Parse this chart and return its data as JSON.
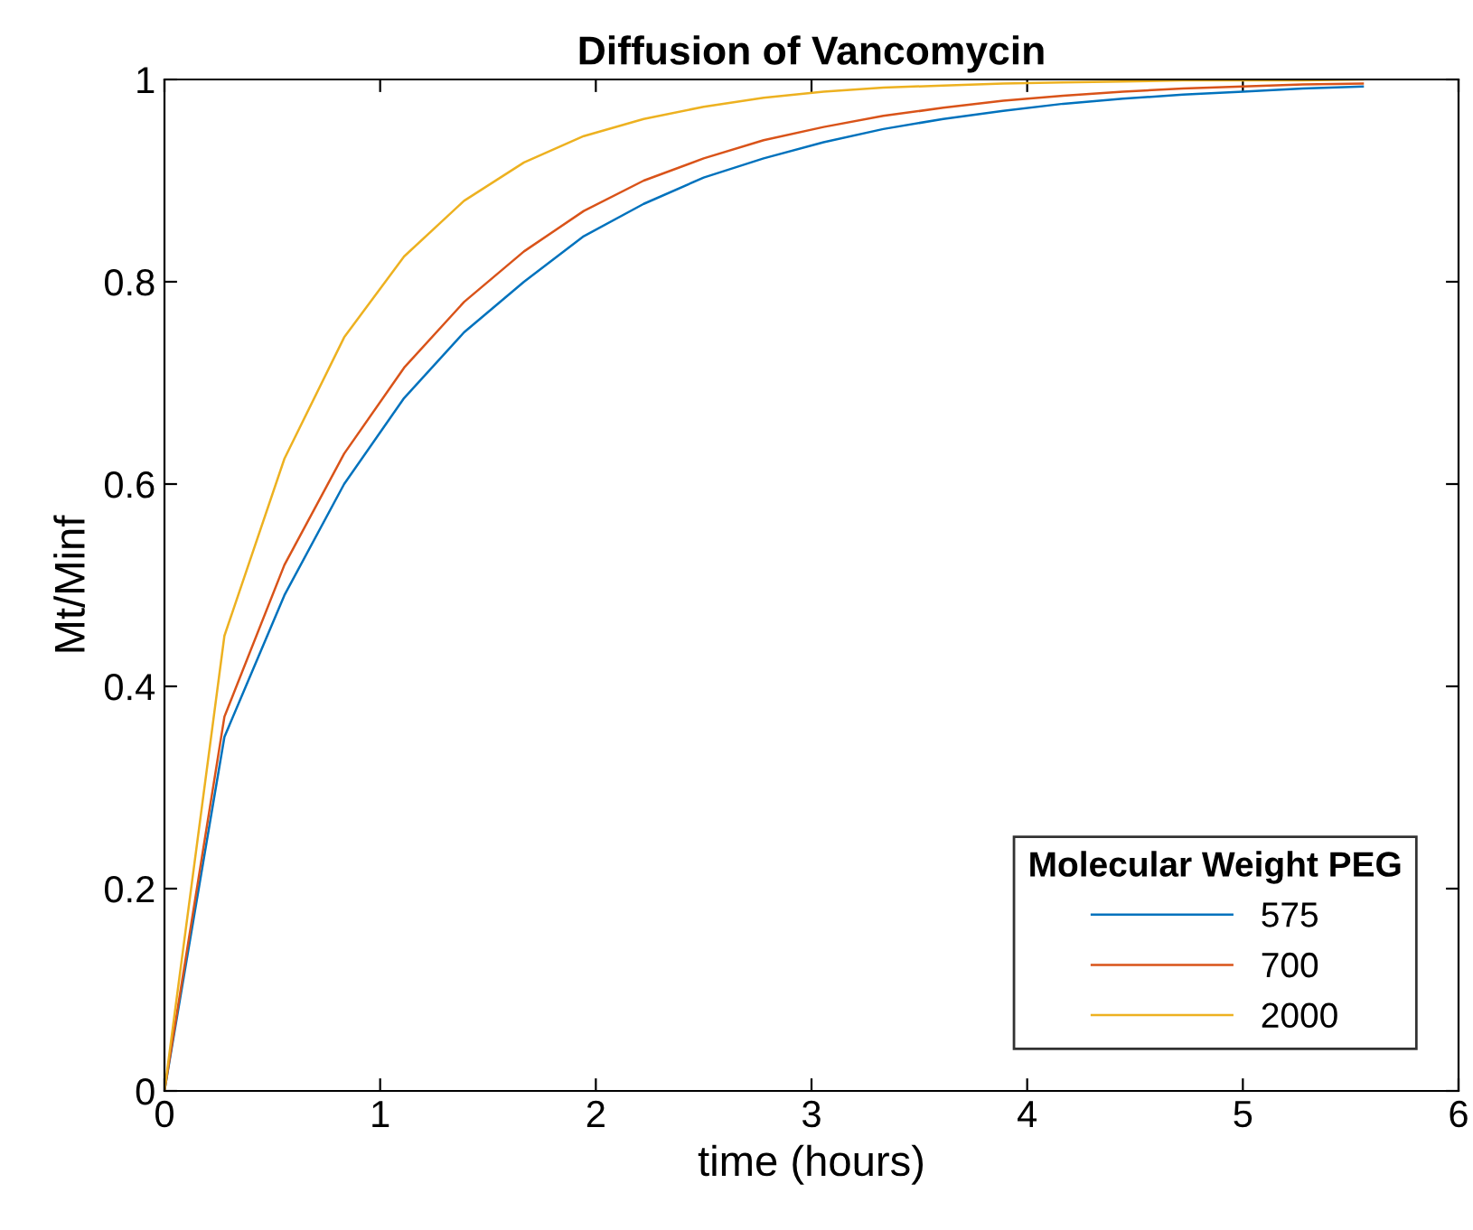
{
  "chart_data": {
    "type": "line",
    "title": "Diffusion of Vancomycin",
    "xlabel": "time (hours)",
    "ylabel": "Mt/Minf",
    "legend_title": "Molecular Weight PEG",
    "legend": "bottom right",
    "grid": false,
    "marker": "none",
    "line_style": "solid",
    "x": [
      0,
      0.278,
      0.556,
      0.833,
      1.111,
      1.389,
      1.667,
      1.944,
      2.222,
      2.5,
      2.778,
      3.056,
      3.333,
      3.611,
      3.889,
      4.167,
      4.444,
      4.722,
      5.0,
      5.278,
      5.556
    ],
    "xlim": [
      0,
      6
    ],
    "xticks": [
      0,
      1,
      2,
      3,
      4,
      5,
      6
    ],
    "ylim": [
      0,
      1
    ],
    "yticks": [
      0,
      0.2,
      0.4,
      0.6,
      0.8,
      1
    ],
    "series": [
      {
        "name": "575",
        "color": "#0072bd",
        "values": [
          0,
          0.35,
          0.49,
          0.6,
          0.685,
          0.75,
          0.8,
          0.845,
          0.877,
          0.903,
          0.922,
          0.938,
          0.951,
          0.961,
          0.969,
          0.976,
          0.981,
          0.985,
          0.988,
          0.991,
          0.993
        ]
      },
      {
        "name": "700",
        "color": "#d95319",
        "values": [
          0,
          0.37,
          0.52,
          0.63,
          0.715,
          0.78,
          0.83,
          0.87,
          0.9,
          0.922,
          0.94,
          0.953,
          0.964,
          0.972,
          0.979,
          0.984,
          0.988,
          0.991,
          0.993,
          0.995,
          0.996
        ]
      },
      {
        "name": "2000",
        "color": "#edb120",
        "values": [
          0,
          0.45,
          0.625,
          0.745,
          0.825,
          0.88,
          0.918,
          0.944,
          0.961,
          0.973,
          0.982,
          0.988,
          0.992,
          0.994,
          0.996,
          0.997,
          0.998,
          0.999,
          0.999,
          0.999,
          1.0
        ]
      }
    ]
  }
}
